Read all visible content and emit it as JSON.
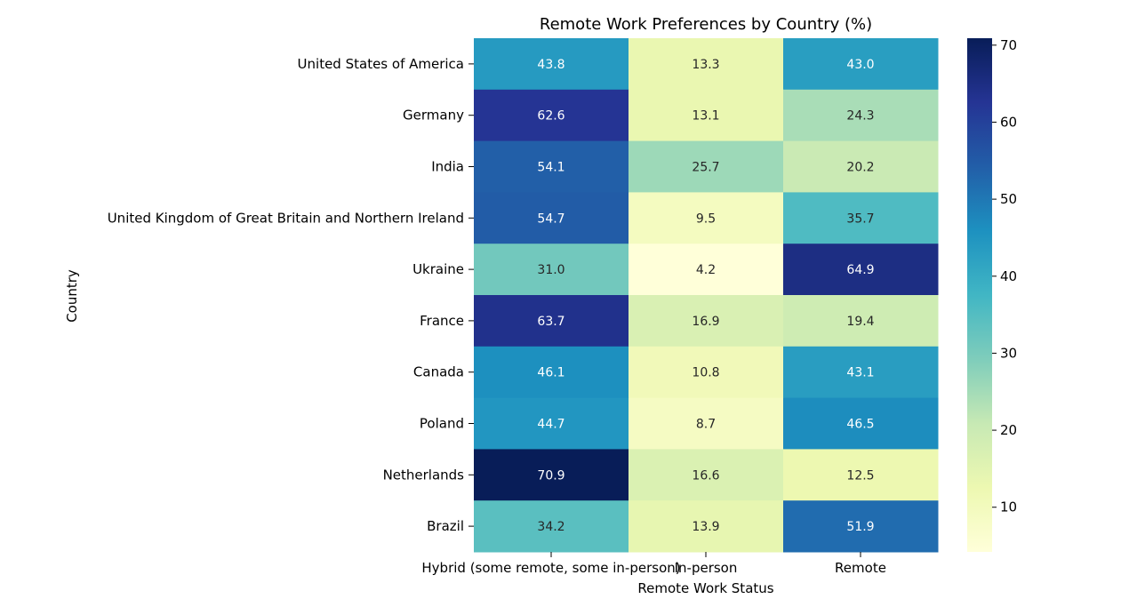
{
  "chart_data": {
    "type": "heatmap",
    "title": "Remote Work Preferences by Country (%)",
    "xlabel": "Remote Work Status",
    "ylabel": "Country",
    "columns": [
      "Hybrid (some remote, some in-person)",
      "In-person",
      "Remote"
    ],
    "rows": [
      "United States of America",
      "Germany",
      "India",
      "United Kingdom of Great Britain and Northern Ireland",
      "Ukraine",
      "France",
      "Canada",
      "Poland",
      "Netherlands",
      "Brazil"
    ],
    "values": [
      [
        43.8,
        13.3,
        43.0
      ],
      [
        62.6,
        13.1,
        24.3
      ],
      [
        54.1,
        25.7,
        20.2
      ],
      [
        54.7,
        9.5,
        35.7
      ],
      [
        31.0,
        4.2,
        64.9
      ],
      [
        63.7,
        16.9,
        19.4
      ],
      [
        46.1,
        10.8,
        43.1
      ],
      [
        44.7,
        8.7,
        46.5
      ],
      [
        70.9,
        16.6,
        12.5
      ],
      [
        34.2,
        13.9,
        51.9
      ]
    ],
    "colormap": "YlGnBu",
    "colorbar": {
      "range": [
        4.2,
        70.9
      ],
      "ticks": [
        10,
        20,
        30,
        40,
        50,
        60,
        70
      ]
    }
  }
}
